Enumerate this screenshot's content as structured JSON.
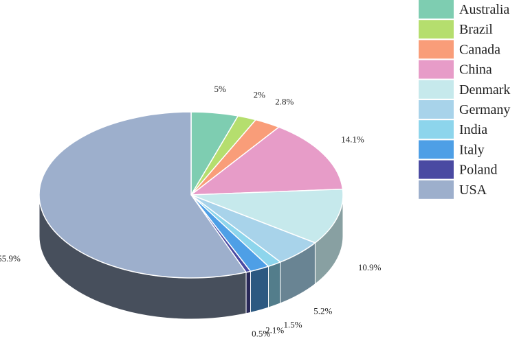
{
  "chart_data": {
    "type": "pie",
    "three_d": true,
    "legend_position": "right",
    "categories": [
      "Australia",
      "Brazil",
      "Canada",
      "China",
      "Denmark",
      "Germany",
      "India",
      "Italy",
      "Poland",
      "USA"
    ],
    "values": [
      5,
      2,
      2.8,
      14.1,
      10.9,
      5.2,
      1.5,
      2.1,
      0.5,
      55.9
    ],
    "labels": [
      "5%",
      "2%",
      "2.8%",
      "14.1%",
      "10.9%",
      "5.2%",
      "1.5%",
      "2.1%",
      "0.5%",
      "55.9%"
    ],
    "colors": [
      "#7ecdb1",
      "#b5de6e",
      "#f99d79",
      "#e79cc8",
      "#c6e9ec",
      "#a8d3ea",
      "#8dd5ec",
      "#4e9fe6",
      "#4a4aa2",
      "#9dafcc"
    ]
  }
}
